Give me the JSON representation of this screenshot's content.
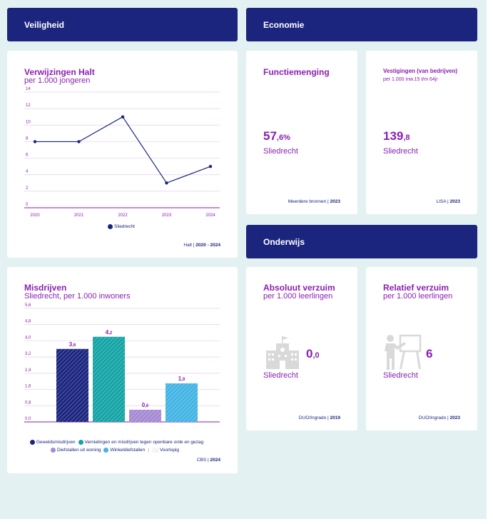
{
  "headers": {
    "veiligheid": "Veiligheid",
    "economie": "Economie",
    "onderwijs": "Onderwijs"
  },
  "halt": {
    "title": "Verwijzingen Halt",
    "subtitle": "per 1.000 jongeren",
    "legend": "Sliedrecht",
    "source_name": "Halt",
    "source_year": "2020 - 2024"
  },
  "functiemenging": {
    "title": "Functiemenging",
    "value_int": "57",
    "value_dec": ",6%",
    "label": "Sliedrecht",
    "source_name": "Meerdere bronnen",
    "source_year": "2023"
  },
  "vestigingen": {
    "title": "Vestigingen (van bedrijven)",
    "subtitle": "per 1.000 inw.15 t/m 64jr",
    "value_int": "139",
    "value_dec": ",8",
    "label": "Sliedrecht",
    "source_name": "LISA",
    "source_year": "2023"
  },
  "misdrijven": {
    "title": "Misdrijven",
    "subtitle": "Sliedrecht, per 1.000 inwoners",
    "legend": {
      "geweld": "Geweldsmisdrijven",
      "vernielingen": "Vernielingen en misdrijven tegen openbare orde en gezag",
      "diefstallen": "Diefstallen uit woning",
      "winkel": "Winkeldiefstallen",
      "sep": "|",
      "voorlopig": "Voorlopig"
    },
    "source_name": "CBS",
    "source_year": "2024"
  },
  "absoluut": {
    "title": "Absoluut verzuim",
    "subtitle": "per 1.000 leerlingen",
    "value_int": "0",
    "value_dec": ",0",
    "label": "Sliedrecht",
    "source_name": "DUO/Ingrado",
    "source_year": "2019"
  },
  "relatief": {
    "title": "Relatief verzuim",
    "subtitle": "per 1.000 leerlingen",
    "value_int": "6",
    "label": "Sliedrecht",
    "source_name": "DUO/Ingrado",
    "source_year": "2023"
  },
  "colors": {
    "navy": "#1b257e",
    "purple": "#8a1fb2",
    "teal": "#14a4a5",
    "lavender": "#a58ad3",
    "lightblue": "#43b4e4"
  },
  "chart_data": [
    {
      "type": "line",
      "x": [
        "2020",
        "2021",
        "2022",
        "2023",
        "2024"
      ],
      "series": [
        {
          "name": "Sliedrecht",
          "values": [
            8,
            8,
            11,
            3,
            5
          ]
        }
      ],
      "yticks": [
        "0",
        "2",
        "4",
        "6",
        "8",
        "10",
        "12",
        "14"
      ],
      "ylim": [
        0,
        14
      ],
      "grid": true,
      "legend": "bottom"
    },
    {
      "type": "bar",
      "categories": [
        "Geweldsmisdrijven",
        "Vernielingen en misdrijven tegen openbare orde en gezag",
        "Diefstallen uit woning",
        "Winkeldiefstallen"
      ],
      "values": [
        3.6,
        4.2,
        0.6,
        1.9
      ],
      "value_labels": [
        [
          "3",
          ",6"
        ],
        [
          "4",
          ",2"
        ],
        [
          "0",
          ",6"
        ],
        [
          "1",
          ",9"
        ]
      ],
      "colors": [
        "#1b257e",
        "#14a4a5",
        "#a58ad3",
        "#43b4e4"
      ],
      "yticks": [
        "0,0",
        "0,8",
        "1,6",
        "2,4",
        "3,2",
        "4,0",
        "4,8",
        "5,6"
      ],
      "ylim": [
        0,
        5.6
      ],
      "grid": true,
      "legend": "bottom"
    }
  ]
}
